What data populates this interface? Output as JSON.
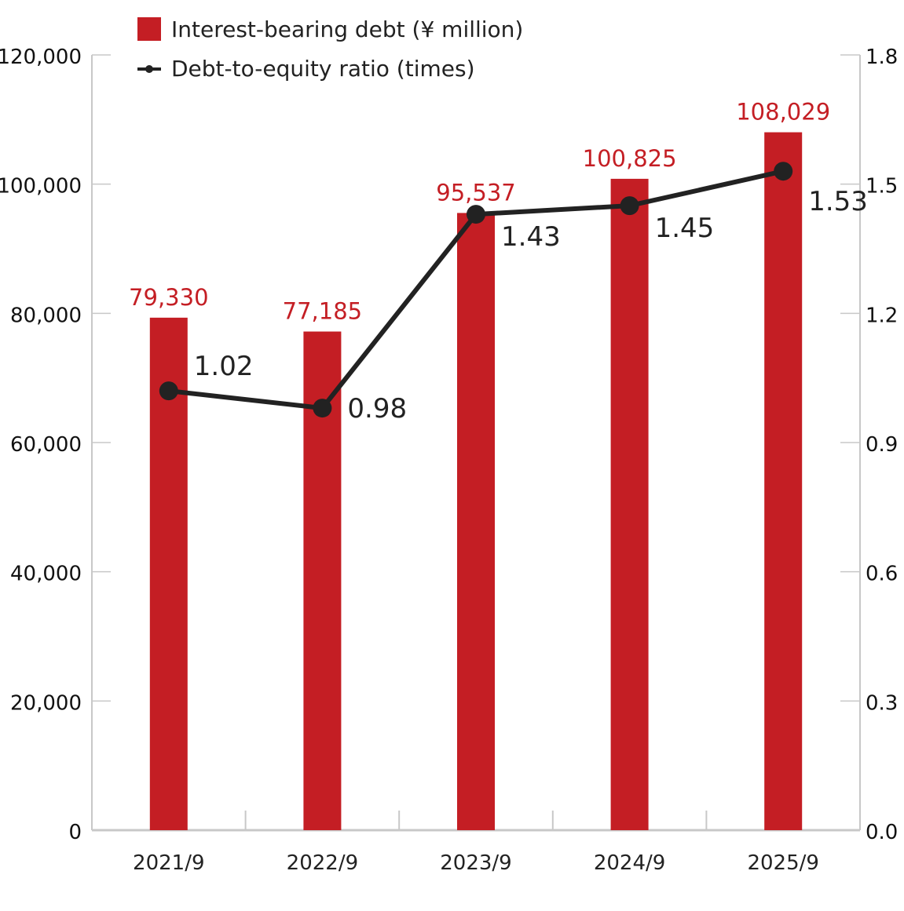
{
  "chart_data": {
    "type": "bar+line",
    "categories": [
      "2021/9",
      "2022/9",
      "2023/9",
      "2024/9",
      "2025/9"
    ],
    "series": [
      {
        "name": "Interest-bearing debt  (¥ million)",
        "type": "bar",
        "axis": "left",
        "color": "#c41e24",
        "values": [
          79330,
          77185,
          95537,
          100825,
          108029
        ],
        "labels": [
          "79,330",
          "77,185",
          "95,537",
          "100,825",
          "108,029"
        ]
      },
      {
        "name": "Debt-to-equity ratio (times)",
        "type": "line",
        "axis": "right",
        "color": "#222222",
        "values": [
          1.02,
          0.98,
          1.43,
          1.45,
          1.53
        ],
        "labels": [
          "1.02",
          "0.98",
          "1.43",
          "1.45",
          "1.53"
        ]
      }
    ],
    "left_axis": {
      "range": [
        0,
        120000
      ],
      "ticks": [
        "0",
        "20,000",
        "40,000",
        "60,000",
        "80,000",
        "100,000",
        "120,000"
      ]
    },
    "right_axis": {
      "range": [
        0,
        1.8
      ],
      "ticks": [
        "0.0",
        "0.3",
        "0.6",
        "0.9",
        "1.2",
        "1.5",
        "1.8"
      ]
    },
    "legend": {
      "placement": "top-left"
    },
    "grid": false
  }
}
